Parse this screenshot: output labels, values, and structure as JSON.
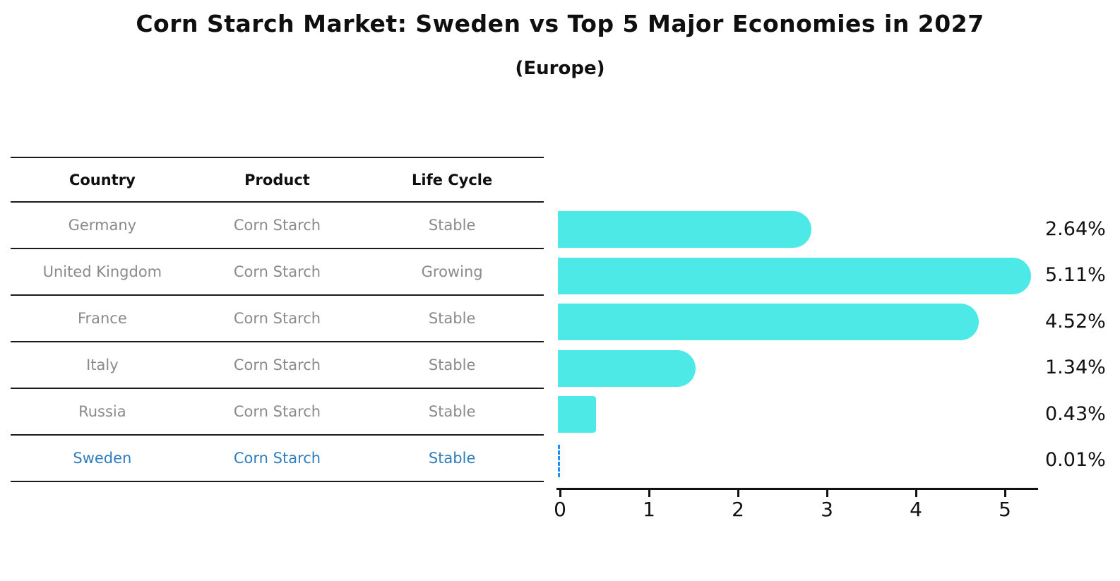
{
  "title": "Corn Starch Market: Sweden vs Top 5 Major Economies in 2027",
  "subtitle": "(Europe)",
  "table": {
    "headers": [
      "Country",
      "Product",
      "Life Cycle"
    ],
    "rows": [
      {
        "country": "Germany",
        "product": "Corn Starch",
        "life_cycle": "Stable",
        "highlight": false
      },
      {
        "country": "United Kingdom",
        "product": "Corn Starch",
        "life_cycle": "Growing",
        "highlight": false
      },
      {
        "country": "France",
        "product": "Corn Starch",
        "life_cycle": "Stable",
        "highlight": false
      },
      {
        "country": "Italy",
        "product": "Corn Starch",
        "life_cycle": "Stable",
        "highlight": false
      },
      {
        "country": "Russia",
        "product": "Corn Starch",
        "life_cycle": "Stable",
        "highlight": false
      },
      {
        "country": "Sweden",
        "product": "Corn Starch",
        "life_cycle": "Stable",
        "highlight": true
      }
    ]
  },
  "chart_data": {
    "type": "bar",
    "orientation": "horizontal",
    "categories": [
      "Germany",
      "United Kingdom",
      "France",
      "Italy",
      "Russia",
      "Sweden"
    ],
    "values": [
      2.64,
      5.11,
      4.52,
      1.34,
      0.43,
      0.01
    ],
    "value_labels": [
      "2.64%",
      "5.11%",
      "4.52%",
      "1.34%",
      "0.43%",
      "0.01%"
    ],
    "x_ticks": [
      "0",
      "1",
      "2",
      "3",
      "4",
      "5"
    ],
    "xlim": [
      0,
      5.4
    ],
    "grid": false,
    "legend": "none",
    "bar_color": "#4de9e6",
    "highlight_index": 5,
    "highlight_color": "#1e90ff",
    "highlight_style": "dashed-outline",
    "title": "Corn Starch Market: Sweden vs Top 5 Major Economies in 2027",
    "subtitle": "(Europe)",
    "xlabel": "",
    "ylabel": ""
  }
}
